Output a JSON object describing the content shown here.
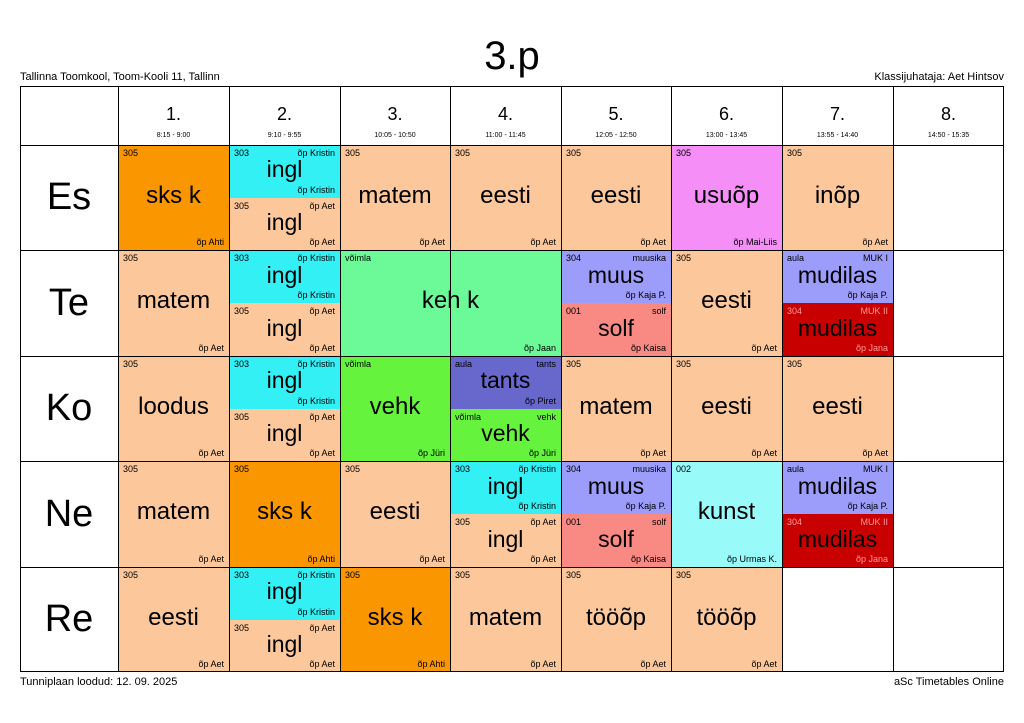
{
  "header": {
    "title": "3.p",
    "school": "Tallinna Toomkool, Toom-Kooli 11, Tallinn",
    "class_teacher": "Klassijuhataja: Aet Hintsov"
  },
  "footer": {
    "created": "Tunniplaan loodud: 12. 09. 2025",
    "software": "aSc Timetables Online"
  },
  "colors": {
    "peach": "#fcc79b",
    "orange": "#fa9600",
    "cyan": "#33f0f5",
    "pink": "#f58ef7",
    "green": "#6cfa98",
    "lavender": "#9c9cfb",
    "salmon": "#f98983",
    "red": "#c80000",
    "lime": "#66f33e",
    "violet": "#6767cc",
    "lightcyan": "#99fafa"
  },
  "periods": [
    {
      "num": "1.",
      "time": "8:15 - 9:00"
    },
    {
      "num": "2.",
      "time": "9:10 - 9:55"
    },
    {
      "num": "3.",
      "time": "10:05 - 10:50"
    },
    {
      "num": "4.",
      "time": "11:00 - 11:45"
    },
    {
      "num": "5.",
      "time": "12:05 - 12:50"
    },
    {
      "num": "6.",
      "time": "13:00 - 13:45"
    },
    {
      "num": "7.",
      "time": "13:55 - 14:40"
    },
    {
      "num": "8.",
      "time": "14:50 - 15:35"
    }
  ],
  "days": [
    "Es",
    "Te",
    "Ko",
    "Ne",
    "Re"
  ],
  "lessons": [
    {
      "day": 0,
      "p": 0,
      "span": 1,
      "part": 0,
      "parts": 1,
      "color": "orange",
      "room": "305",
      "group": "",
      "subject": "sks k",
      "teacher": "õp Ahti"
    },
    {
      "day": 0,
      "p": 1,
      "span": 1,
      "part": 0,
      "parts": 2,
      "color": "cyan",
      "room": "303",
      "group": "õp Kristin",
      "subject": "ingl",
      "teacher": "õp Kristin"
    },
    {
      "day": 0,
      "p": 1,
      "span": 1,
      "part": 1,
      "parts": 2,
      "color": "peach",
      "room": "305",
      "group": "õp Aet",
      "subject": "ingl",
      "teacher": "õp Aet"
    },
    {
      "day": 0,
      "p": 2,
      "span": 1,
      "part": 0,
      "parts": 1,
      "color": "peach",
      "room": "305",
      "group": "",
      "subject": "matem",
      "teacher": "õp Aet"
    },
    {
      "day": 0,
      "p": 3,
      "span": 1,
      "part": 0,
      "parts": 1,
      "color": "peach",
      "room": "305",
      "group": "",
      "subject": "eesti",
      "teacher": "õp Aet"
    },
    {
      "day": 0,
      "p": 4,
      "span": 1,
      "part": 0,
      "parts": 1,
      "color": "peach",
      "room": "305",
      "group": "",
      "subject": "eesti",
      "teacher": "õp Aet"
    },
    {
      "day": 0,
      "p": 5,
      "span": 1,
      "part": 0,
      "parts": 1,
      "color": "pink",
      "room": "305",
      "group": "",
      "subject": "usuõp",
      "teacher": "õp Mai-Liis"
    },
    {
      "day": 0,
      "p": 6,
      "span": 1,
      "part": 0,
      "parts": 1,
      "color": "peach",
      "room": "305",
      "group": "",
      "subject": "inõp",
      "teacher": "õp Aet"
    },
    {
      "day": 1,
      "p": 0,
      "span": 1,
      "part": 0,
      "parts": 1,
      "color": "peach",
      "room": "305",
      "group": "",
      "subject": "matem",
      "teacher": "õp Aet"
    },
    {
      "day": 1,
      "p": 1,
      "span": 1,
      "part": 0,
      "parts": 2,
      "color": "cyan",
      "room": "303",
      "group": "õp Kristin",
      "subject": "ingl",
      "teacher": "õp Kristin"
    },
    {
      "day": 1,
      "p": 1,
      "span": 1,
      "part": 1,
      "parts": 2,
      "color": "peach",
      "room": "305",
      "group": "õp Aet",
      "subject": "ingl",
      "teacher": "õp Aet"
    },
    {
      "day": 1,
      "p": 2,
      "span": 2,
      "part": 0,
      "parts": 1,
      "color": "green",
      "room": "võimla",
      "group": "",
      "subject": "keh k",
      "teacher": "õp Jaan"
    },
    {
      "day": 1,
      "p": 4,
      "span": 1,
      "part": 0,
      "parts": 2,
      "color": "lavender",
      "room": "304",
      "group": "muusika",
      "subject": "muus",
      "teacher": "õp Kaja P."
    },
    {
      "day": 1,
      "p": 4,
      "span": 1,
      "part": 1,
      "parts": 2,
      "color": "salmon",
      "room": "001",
      "group": "solf",
      "subject": "solf",
      "teacher": "õp Kaisa"
    },
    {
      "day": 1,
      "p": 5,
      "span": 1,
      "part": 0,
      "parts": 1,
      "color": "peach",
      "room": "305",
      "group": "",
      "subject": "eesti",
      "teacher": "õp Aet"
    },
    {
      "day": 1,
      "p": 6,
      "span": 1,
      "part": 0,
      "parts": 2,
      "color": "lavender",
      "room": "aula",
      "group": "MUK I",
      "subject": "mudilas",
      "teacher": "õp Kaja P."
    },
    {
      "day": 1,
      "p": 6,
      "span": 1,
      "part": 1,
      "parts": 2,
      "color": "red",
      "room": "304",
      "group": "MUK II",
      "subject": "mudilas",
      "teacher": "õp Jana"
    },
    {
      "day": 2,
      "p": 0,
      "span": 1,
      "part": 0,
      "parts": 1,
      "color": "peach",
      "room": "305",
      "group": "",
      "subject": "loodus",
      "teacher": "õp Aet"
    },
    {
      "day": 2,
      "p": 1,
      "span": 1,
      "part": 0,
      "parts": 2,
      "color": "cyan",
      "room": "303",
      "group": "õp Kristin",
      "subject": "ingl",
      "teacher": "õp Kristin"
    },
    {
      "day": 2,
      "p": 1,
      "span": 1,
      "part": 1,
      "parts": 2,
      "color": "peach",
      "room": "305",
      "group": "õp Aet",
      "subject": "ingl",
      "teacher": "õp Aet"
    },
    {
      "day": 2,
      "p": 2,
      "span": 1,
      "part": 0,
      "parts": 1,
      "color": "lime",
      "room": "võimla",
      "group": "",
      "subject": "vehk",
      "teacher": "õp Jüri"
    },
    {
      "day": 2,
      "p": 3,
      "span": 1,
      "part": 0,
      "parts": 2,
      "color": "violet",
      "room": "aula",
      "group": "tants",
      "subject": "tants",
      "teacher": "õp Piret"
    },
    {
      "day": 2,
      "p": 3,
      "span": 1,
      "part": 1,
      "parts": 2,
      "color": "lime",
      "room": "võimla",
      "group": "vehk",
      "subject": "vehk",
      "teacher": "õp Jüri"
    },
    {
      "day": 2,
      "p": 4,
      "span": 1,
      "part": 0,
      "parts": 1,
      "color": "peach",
      "room": "305",
      "group": "",
      "subject": "matem",
      "teacher": "õp Aet"
    },
    {
      "day": 2,
      "p": 5,
      "span": 1,
      "part": 0,
      "parts": 1,
      "color": "peach",
      "room": "305",
      "group": "",
      "subject": "eesti",
      "teacher": "õp Aet"
    },
    {
      "day": 2,
      "p": 6,
      "span": 1,
      "part": 0,
      "parts": 1,
      "color": "peach",
      "room": "305",
      "group": "",
      "subject": "eesti",
      "teacher": "õp Aet"
    },
    {
      "day": 3,
      "p": 0,
      "span": 1,
      "part": 0,
      "parts": 1,
      "color": "peach",
      "room": "305",
      "group": "",
      "subject": "matem",
      "teacher": "õp Aet"
    },
    {
      "day": 3,
      "p": 1,
      "span": 1,
      "part": 0,
      "parts": 1,
      "color": "orange",
      "room": "305",
      "group": "",
      "subject": "sks k",
      "teacher": "õp Ahti"
    },
    {
      "day": 3,
      "p": 2,
      "span": 1,
      "part": 0,
      "parts": 1,
      "color": "peach",
      "room": "305",
      "group": "",
      "subject": "eesti",
      "teacher": "õp Aet"
    },
    {
      "day": 3,
      "p": 3,
      "span": 1,
      "part": 0,
      "parts": 2,
      "color": "cyan",
      "room": "303",
      "group": "õp Kristin",
      "subject": "ingl",
      "teacher": "õp Kristin"
    },
    {
      "day": 3,
      "p": 3,
      "span": 1,
      "part": 1,
      "parts": 2,
      "color": "peach",
      "room": "305",
      "group": "õp Aet",
      "subject": "ingl",
      "teacher": "õp Aet"
    },
    {
      "day": 3,
      "p": 4,
      "span": 1,
      "part": 0,
      "parts": 2,
      "color": "lavender",
      "room": "304",
      "group": "muusika",
      "subject": "muus",
      "teacher": "õp Kaja P."
    },
    {
      "day": 3,
      "p": 4,
      "span": 1,
      "part": 1,
      "parts": 2,
      "color": "salmon",
      "room": "001",
      "group": "solf",
      "subject": "solf",
      "teacher": "õp Kaisa"
    },
    {
      "day": 3,
      "p": 5,
      "span": 1,
      "part": 0,
      "parts": 1,
      "color": "lightcyan",
      "room": "002",
      "group": "",
      "subject": "kunst",
      "teacher": "õp Urmas K."
    },
    {
      "day": 3,
      "p": 6,
      "span": 1,
      "part": 0,
      "parts": 2,
      "color": "lavender",
      "room": "aula",
      "group": "MUK I",
      "subject": "mudilas",
      "teacher": "õp Kaja P."
    },
    {
      "day": 3,
      "p": 6,
      "span": 1,
      "part": 1,
      "parts": 2,
      "color": "red",
      "room": "304",
      "group": "MUK II",
      "subject": "mudilas",
      "teacher": "õp Jana"
    },
    {
      "day": 4,
      "p": 0,
      "span": 1,
      "part": 0,
      "parts": 1,
      "color": "peach",
      "room": "305",
      "group": "",
      "subject": "eesti",
      "teacher": "õp Aet"
    },
    {
      "day": 4,
      "p": 1,
      "span": 1,
      "part": 0,
      "parts": 2,
      "color": "cyan",
      "room": "303",
      "group": "õp Kristin",
      "subject": "ingl",
      "teacher": "õp Kristin"
    },
    {
      "day": 4,
      "p": 1,
      "span": 1,
      "part": 1,
      "parts": 2,
      "color": "peach",
      "room": "305",
      "group": "õp Aet",
      "subject": "ingl",
      "teacher": "õp Aet"
    },
    {
      "day": 4,
      "p": 2,
      "span": 1,
      "part": 0,
      "parts": 1,
      "color": "orange",
      "room": "305",
      "group": "",
      "subject": "sks k",
      "teacher": "õp Ahti"
    },
    {
      "day": 4,
      "p": 3,
      "span": 1,
      "part": 0,
      "parts": 1,
      "color": "peach",
      "room": "305",
      "group": "",
      "subject": "matem",
      "teacher": "õp Aet"
    },
    {
      "day": 4,
      "p": 4,
      "span": 1,
      "part": 0,
      "parts": 1,
      "color": "peach",
      "room": "305",
      "group": "",
      "subject": "tööõp",
      "teacher": "õp Aet"
    },
    {
      "day": 4,
      "p": 5,
      "span": 1,
      "part": 0,
      "parts": 1,
      "color": "peach",
      "room": "305",
      "group": "",
      "subject": "tööõp",
      "teacher": "õp Aet"
    }
  ]
}
